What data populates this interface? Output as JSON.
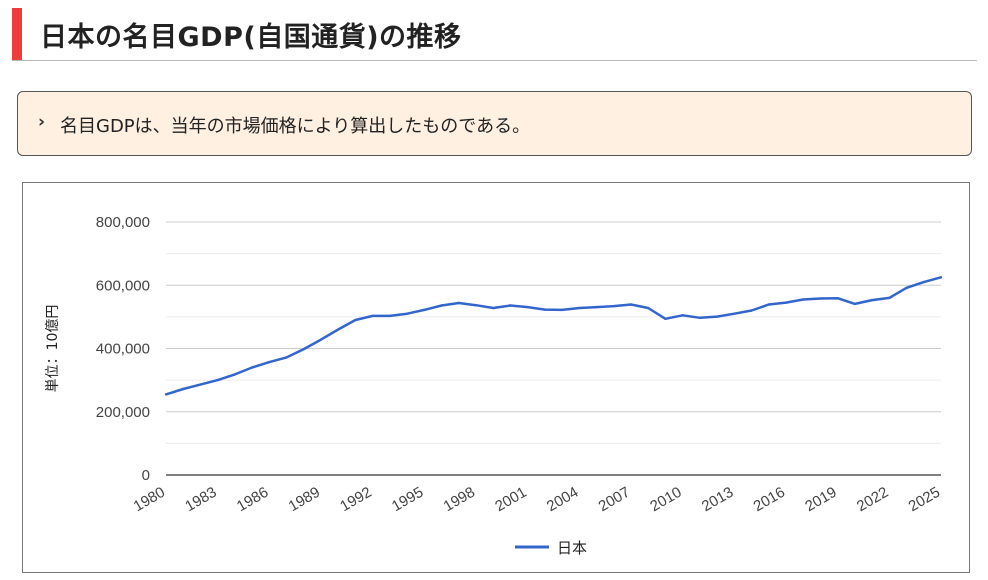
{
  "heading": {
    "title": "日本の名目GDP(自国通貨)の推移",
    "accent_color": "#ee3b3b"
  },
  "note": {
    "bullet_icon": "chevron-right-icon",
    "text": "名目GDPは、当年の市場価格により算出したものである。"
  },
  "chart_data": {
    "type": "line",
    "title": "",
    "xlabel": "",
    "ylabel": "単位：10億円",
    "ylim": [
      0,
      800000
    ],
    "yticks": [
      0,
      200000,
      400000,
      600000,
      800000
    ],
    "ytick_labels": [
      "0",
      "200,000",
      "400,000",
      "600,000",
      "800,000"
    ],
    "xlim": [
      1980,
      2025
    ],
    "xtick_labels": [
      "1980",
      "1983",
      "1986",
      "1989",
      "1992",
      "1995",
      "1998",
      "2001",
      "2004",
      "2007",
      "2010",
      "2013",
      "2016",
      "2019",
      "2022",
      "2025"
    ],
    "legend": "bottom",
    "grid": true,
    "series": [
      {
        "name": "日本",
        "color": "#3366cc",
        "x": [
          1980,
          1981,
          1982,
          1983,
          1984,
          1985,
          1986,
          1987,
          1988,
          1989,
          1990,
          1991,
          1992,
          1993,
          1994,
          1995,
          1996,
          1997,
          1998,
          1999,
          2000,
          2001,
          2002,
          2003,
          2004,
          2005,
          2006,
          2007,
          2008,
          2009,
          2010,
          2011,
          2012,
          2013,
          2014,
          2015,
          2016,
          2017,
          2018,
          2019,
          2020,
          2021,
          2022,
          2023,
          2024,
          2025
        ],
        "values": [
          255000,
          272000,
          286000,
          300000,
          318000,
          340000,
          357000,
          372000,
          398000,
          428000,
          460000,
          490000,
          503000,
          503000,
          510000,
          522000,
          536000,
          544000,
          537000,
          528000,
          536000,
          531000,
          523000,
          522000,
          528000,
          531000,
          534000,
          539000,
          528000,
          494000,
          505000,
          497000,
          501000,
          510000,
          520000,
          539000,
          545000,
          555000,
          558000,
          559000,
          541000,
          553000,
          560000,
          592000,
          610000,
          625000
        ]
      }
    ]
  }
}
